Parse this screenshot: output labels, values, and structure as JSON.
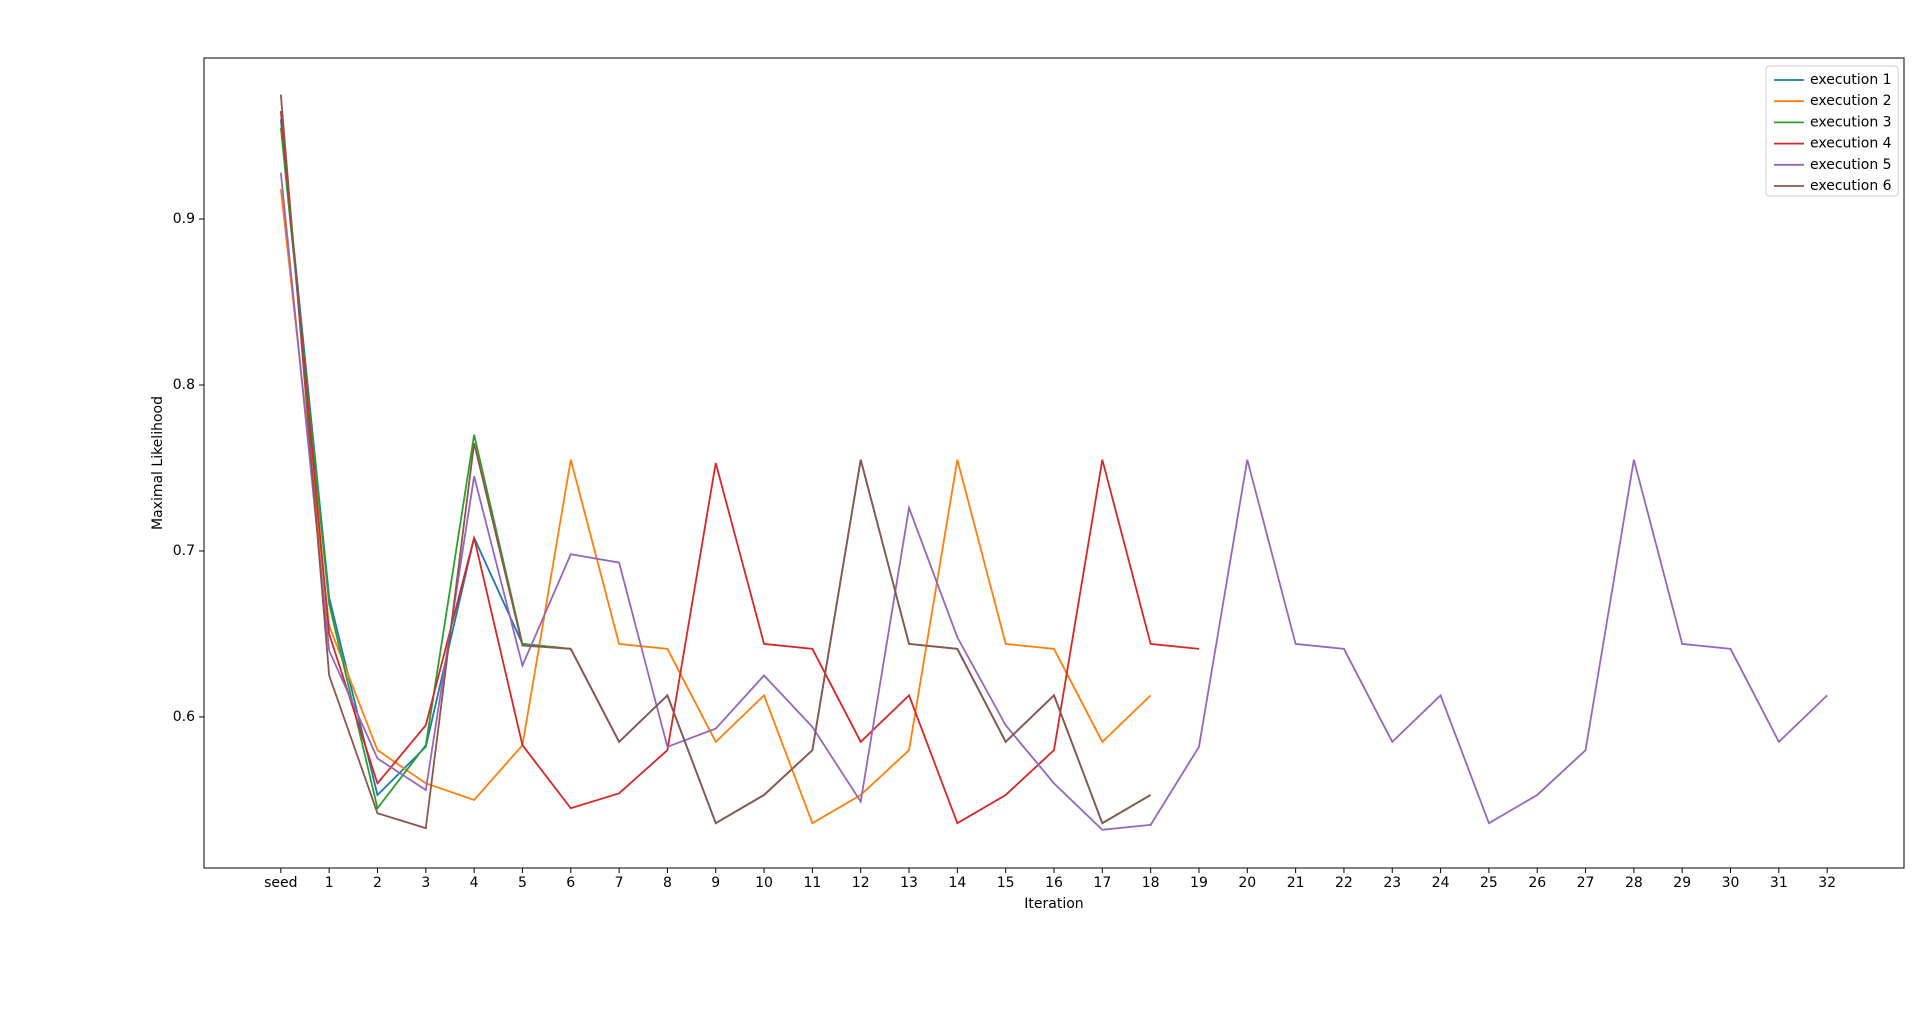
{
  "chart_data": {
    "type": "line",
    "xlabel": "Iteration",
    "ylabel": "Maximal Likelihood",
    "categories": [
      "seed",
      "1",
      "2",
      "3",
      "4",
      "5",
      "6",
      "7",
      "8",
      "9",
      "10",
      "11",
      "12",
      "13",
      "14",
      "15",
      "16",
      "17",
      "18",
      "19",
      "20",
      "21",
      "22",
      "23",
      "24",
      "25",
      "26",
      "27",
      "28",
      "29",
      "30",
      "31",
      "32"
    ],
    "ylim": [
      0.509,
      0.997
    ],
    "yticks": [
      0.6,
      0.7,
      0.8,
      0.9
    ],
    "grid": false,
    "legend": "upper right",
    "series": [
      {
        "name": "execution 1",
        "color": "#1f77b4",
        "values": [
          0.96,
          0.672,
          0.553,
          0.582,
          0.708,
          0.644,
          0.641,
          0.585,
          0.613,
          0.536,
          0.553,
          0.58,
          0.755,
          0.644,
          0.641,
          0.585,
          0.613,
          0.536,
          0.553,
          null,
          null,
          null,
          null,
          null,
          null,
          null,
          null,
          null,
          null,
          null,
          null,
          null,
          null
        ]
      },
      {
        "name": "execution 2",
        "color": "#ff7f0e",
        "values": [
          0.918,
          0.655,
          0.58,
          0.56,
          0.55,
          0.583,
          0.755,
          0.644,
          0.641,
          0.585,
          0.613,
          0.536,
          0.553,
          0.58,
          0.755,
          0.644,
          0.641,
          0.585,
          0.613,
          null,
          null,
          null,
          null,
          null,
          null,
          null,
          null,
          null,
          null,
          null,
          null,
          null,
          null
        ]
      },
      {
        "name": "execution 3",
        "color": "#2ca02c",
        "values": [
          0.955,
          0.668,
          0.545,
          0.583,
          0.77,
          0.644,
          0.641,
          null,
          null,
          null,
          null,
          null,
          null,
          null,
          null,
          null,
          null,
          null,
          null,
          null,
          null,
          null,
          null,
          null,
          null,
          null,
          null,
          null,
          null,
          null,
          null,
          null,
          null
        ]
      },
      {
        "name": "execution 4",
        "color": "#d62728",
        "values": [
          0.965,
          0.65,
          0.56,
          0.595,
          0.708,
          0.583,
          0.545,
          0.554,
          0.58,
          0.753,
          0.644,
          0.641,
          0.585,
          0.613,
          0.536,
          0.553,
          0.58,
          0.755,
          0.644,
          0.641,
          null,
          null,
          null,
          null,
          null,
          null,
          null,
          null,
          null,
          null,
          null,
          null,
          null
        ]
      },
      {
        "name": "execution 5",
        "color": "#9467bd",
        "values": [
          0.928,
          0.64,
          0.575,
          0.556,
          0.745,
          0.631,
          0.698,
          0.693,
          0.582,
          0.593,
          0.625,
          0.594,
          0.549,
          0.726,
          0.648,
          0.595,
          0.56,
          0.532,
          0.535,
          0.582,
          0.755,
          0.644,
          0.641,
          0.585,
          0.613,
          0.536,
          0.553,
          0.58,
          0.755,
          0.644,
          0.641,
          0.585,
          0.613
        ]
      },
      {
        "name": "execution 6",
        "color": "#8c564b",
        "values": [
          0.975,
          0.625,
          0.542,
          0.533,
          0.765,
          0.643,
          0.641,
          0.585,
          0.613,
          0.536,
          0.553,
          0.58,
          0.755,
          0.644,
          0.641,
          0.585,
          0.613,
          0.536,
          0.553,
          null,
          null,
          null,
          null,
          null,
          null,
          null,
          null,
          null,
          null,
          null,
          null,
          null,
          null
        ]
      }
    ]
  }
}
